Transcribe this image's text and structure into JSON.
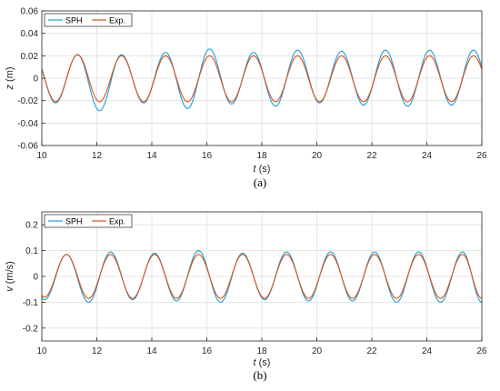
{
  "chart_data": [
    {
      "type": "line",
      "caption": "(a)",
      "xlabel_italic": "t",
      "xlabel_unit": " (s)",
      "ylabel_italic": "z",
      "ylabel_unit": " (m)",
      "xlim": [
        10,
        26
      ],
      "ylim": [
        -0.06,
        0.06
      ],
      "xticks": [
        10,
        12,
        14,
        16,
        18,
        20,
        22,
        24,
        26
      ],
      "yticks": [
        -0.06,
        -0.04,
        -0.02,
        0,
        0.02,
        0.04,
        0.06
      ],
      "ytick_labels": [
        "-0.06",
        "-0.04",
        "-0.02",
        "0",
        "0.02",
        "0.04",
        "0.06"
      ],
      "grid": true,
      "legend_placement": "top-left",
      "period": 1.6,
      "series": [
        {
          "name": "SPH",
          "color": "#1f9bd7",
          "peaks": [
            {
              "t": 11.3,
              "value": 0.021
            },
            {
              "t": 12.9,
              "value": 0.021
            },
            {
              "t": 14.5,
              "value": 0.023
            },
            {
              "t": 16.1,
              "value": 0.026
            },
            {
              "t": 17.7,
              "value": 0.023
            },
            {
              "t": 19.3,
              "value": 0.025
            },
            {
              "t": 20.9,
              "value": 0.024
            },
            {
              "t": 22.5,
              "value": 0.025
            },
            {
              "t": 24.1,
              "value": 0.025
            },
            {
              "t": 25.7,
              "value": 0.025
            }
          ],
          "troughs": [
            {
              "t": 10.5,
              "value": -0.022
            },
            {
              "t": 12.1,
              "value": -0.029
            },
            {
              "t": 13.7,
              "value": -0.022
            },
            {
              "t": 15.3,
              "value": -0.027
            },
            {
              "t": 16.9,
              "value": -0.023
            },
            {
              "t": 18.5,
              "value": -0.025
            },
            {
              "t": 20.1,
              "value": -0.022
            },
            {
              "t": 21.7,
              "value": -0.024
            },
            {
              "t": 23.3,
              "value": -0.025
            },
            {
              "t": 24.9,
              "value": -0.024
            }
          ]
        },
        {
          "name": "Exp.",
          "color": "#d9541a",
          "peaks": [
            {
              "t": 11.3,
              "value": 0.021
            },
            {
              "t": 12.9,
              "value": 0.02
            },
            {
              "t": 14.5,
              "value": 0.02
            },
            {
              "t": 16.1,
              "value": 0.02
            },
            {
              "t": 17.7,
              "value": 0.02
            },
            {
              "t": 19.3,
              "value": 0.02
            },
            {
              "t": 20.9,
              "value": 0.02
            },
            {
              "t": 22.5,
              "value": 0.02
            },
            {
              "t": 24.1,
              "value": 0.02
            },
            {
              "t": 25.7,
              "value": 0.02
            }
          ],
          "troughs": [
            {
              "t": 10.5,
              "value": -0.021
            },
            {
              "t": 12.1,
              "value": -0.021
            },
            {
              "t": 13.7,
              "value": -0.021
            },
            {
              "t": 15.3,
              "value": -0.021
            },
            {
              "t": 16.9,
              "value": -0.021
            },
            {
              "t": 18.5,
              "value": -0.021
            },
            {
              "t": 20.1,
              "value": -0.021
            },
            {
              "t": 21.7,
              "value": -0.021
            },
            {
              "t": 23.3,
              "value": -0.021
            },
            {
              "t": 24.9,
              "value": -0.021
            }
          ]
        }
      ]
    },
    {
      "type": "line",
      "caption": "(b)",
      "xlabel_italic": "t",
      "xlabel_unit": " (s)",
      "ylabel_italic": "v",
      "ylabel_unit": " (m/s)",
      "xlim": [
        10,
        26
      ],
      "ylim": [
        -0.25,
        0.25
      ],
      "xticks": [
        10,
        12,
        14,
        16,
        18,
        20,
        22,
        24,
        26
      ],
      "yticks": [
        -0.2,
        -0.1,
        0,
        0.1,
        0.2
      ],
      "ytick_labels": [
        "-0.2",
        "-0.1",
        "0",
        "0.1",
        "0.2"
      ],
      "grid": true,
      "legend_placement": "top-left",
      "period": 1.6,
      "series": [
        {
          "name": "SPH",
          "color": "#1f9bd7",
          "peaks": [
            {
              "t": 10.9,
              "value": 0.085
            },
            {
              "t": 12.5,
              "value": 0.095
            },
            {
              "t": 14.1,
              "value": 0.09
            },
            {
              "t": 15.7,
              "value": 0.1
            },
            {
              "t": 17.3,
              "value": 0.09
            },
            {
              "t": 18.9,
              "value": 0.095
            },
            {
              "t": 20.5,
              "value": 0.095
            },
            {
              "t": 22.1,
              "value": 0.095
            },
            {
              "t": 23.7,
              "value": 0.095
            },
            {
              "t": 25.3,
              "value": 0.095
            }
          ],
          "troughs": [
            {
              "t": 10.1,
              "value": -0.09
            },
            {
              "t": 11.7,
              "value": -0.1
            },
            {
              "t": 13.3,
              "value": -0.09
            },
            {
              "t": 14.9,
              "value": -0.095
            },
            {
              "t": 16.5,
              "value": -0.1
            },
            {
              "t": 18.1,
              "value": -0.09
            },
            {
              "t": 19.7,
              "value": -0.095
            },
            {
              "t": 21.3,
              "value": -0.095
            },
            {
              "t": 22.9,
              "value": -0.1
            },
            {
              "t": 24.5,
              "value": -0.1
            },
            {
              "t": 26.0,
              "value": -0.1
            }
          ]
        },
        {
          "name": "Exp.",
          "color": "#d9541a",
          "peaks": [
            {
              "t": 10.9,
              "value": 0.085
            },
            {
              "t": 12.5,
              "value": 0.085
            },
            {
              "t": 14.1,
              "value": 0.085
            },
            {
              "t": 15.7,
              "value": 0.085
            },
            {
              "t": 17.3,
              "value": 0.085
            },
            {
              "t": 18.9,
              "value": 0.085
            },
            {
              "t": 20.5,
              "value": 0.085
            },
            {
              "t": 22.1,
              "value": 0.085
            },
            {
              "t": 23.7,
              "value": 0.085
            },
            {
              "t": 25.3,
              "value": 0.085
            }
          ],
          "troughs": [
            {
              "t": 10.1,
              "value": -0.08
            },
            {
              "t": 11.7,
              "value": -0.085
            },
            {
              "t": 13.3,
              "value": -0.085
            },
            {
              "t": 14.9,
              "value": -0.085
            },
            {
              "t": 16.5,
              "value": -0.085
            },
            {
              "t": 18.1,
              "value": -0.085
            },
            {
              "t": 19.7,
              "value": -0.085
            },
            {
              "t": 21.3,
              "value": -0.085
            },
            {
              "t": 22.9,
              "value": -0.085
            },
            {
              "t": 24.5,
              "value": -0.085
            },
            {
              "t": 26.0,
              "value": -0.085
            }
          ]
        }
      ]
    }
  ]
}
